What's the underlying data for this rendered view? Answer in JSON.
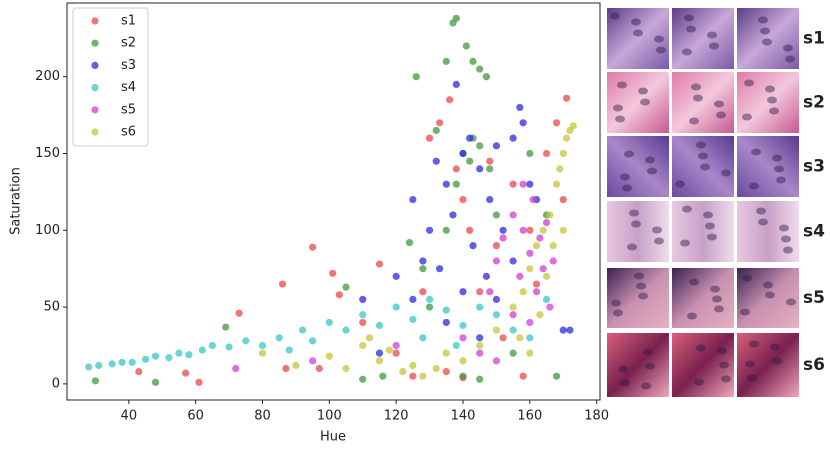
{
  "chart_data": {
    "type": "scatter",
    "xlabel": "Hue",
    "ylabel": "Saturation",
    "xlim": [
      21.5,
      181
    ],
    "ylim": [
      -10.5,
      248
    ],
    "xticks": [
      40,
      60,
      80,
      100,
      120,
      140,
      160,
      180
    ],
    "yticks": [
      0,
      50,
      100,
      150,
      200
    ],
    "legend": "upper left",
    "series": [
      {
        "name": "s1",
        "color": "#e8484a",
        "x": [
          43,
          57,
          61,
          73,
          86,
          87,
          95,
          97,
          101,
          103,
          110,
          115,
          120,
          125,
          130,
          133,
          136,
          138,
          140,
          142,
          145,
          148,
          150,
          152,
          155,
          158,
          160,
          165,
          168,
          171,
          135,
          140,
          128,
          162,
          170
        ],
        "y": [
          8,
          7,
          1,
          46,
          65,
          10,
          89,
          10,
          72,
          58,
          40,
          78,
          20,
          5,
          160,
          170,
          185,
          140,
          120,
          100,
          60,
          145,
          90,
          30,
          130,
          5,
          100,
          150,
          170,
          186,
          8,
          4,
          60,
          65,
          120
        ]
      },
      {
        "name": "s2",
        "color": "#3f993f",
        "x": [
          30,
          48,
          69,
          105,
          110,
          116,
          124,
          126,
          128,
          132,
          135,
          137,
          138,
          141,
          143,
          145,
          147,
          140,
          142,
          138,
          145,
          148,
          150,
          135,
          140,
          145,
          155,
          160,
          165,
          168,
          130,
          143
        ],
        "y": [
          2,
          1,
          37,
          63,
          3,
          5,
          92,
          200,
          75,
          165,
          210,
          235,
          238,
          220,
          210,
          205,
          200,
          150,
          145,
          130,
          155,
          140,
          110,
          100,
          5,
          3,
          20,
          150,
          110,
          5,
          50,
          160
        ]
      },
      {
        "name": "s3",
        "color": "#2a2ae0",
        "x": [
          110,
          115,
          120,
          125,
          128,
          130,
          132,
          135,
          137,
          138,
          140,
          142,
          143,
          145,
          147,
          148,
          150,
          152,
          155,
          157,
          158,
          160,
          162,
          140,
          135,
          145,
          150,
          170,
          172,
          155,
          125,
          133
        ],
        "y": [
          55,
          20,
          70,
          120,
          80,
          100,
          145,
          130,
          110,
          195,
          150,
          160,
          90,
          140,
          70,
          120,
          155,
          100,
          160,
          180,
          170,
          130,
          120,
          60,
          40,
          30,
          55,
          35,
          35,
          80,
          55,
          75
        ]
      },
      {
        "name": "s4",
        "color": "#3cc6c6",
        "x": [
          28,
          31,
          35,
          38,
          41,
          45,
          48,
          52,
          55,
          58,
          62,
          65,
          70,
          75,
          80,
          85,
          88,
          92,
          95,
          100,
          105,
          110,
          115,
          120,
          125,
          130,
          135,
          140,
          145,
          150,
          155,
          160,
          165,
          128,
          138
        ],
        "y": [
          11,
          12,
          13,
          14,
          14,
          16,
          18,
          17,
          20,
          19,
          22,
          25,
          24,
          28,
          25,
          30,
          22,
          35,
          28,
          40,
          35,
          45,
          38,
          50,
          42,
          55,
          48,
          38,
          50,
          45,
          35,
          30,
          55,
          30,
          25
        ]
      },
      {
        "name": "s5",
        "color": "#d23fd2",
        "x": [
          72,
          95,
          120,
          140,
          148,
          150,
          152,
          155,
          157,
          158,
          160,
          161,
          162,
          163,
          164,
          165,
          166,
          167,
          155,
          158,
          160,
          145,
          150
        ],
        "y": [
          10,
          15,
          25,
          30,
          60,
          80,
          95,
          110,
          70,
          100,
          85,
          120,
          60,
          95,
          75,
          105,
          50,
          80,
          45,
          130,
          40,
          20,
          15
        ]
      },
      {
        "name": "s6",
        "color": "#c6c63a",
        "x": [
          80,
          90,
          100,
          105,
          110,
          112,
          115,
          118,
          122,
          125,
          128,
          132,
          135,
          140,
          145,
          150,
          155,
          158,
          160,
          162,
          164,
          166,
          168,
          170,
          171,
          172,
          173,
          169,
          167,
          165,
          163,
          157,
          160,
          170
        ],
        "y": [
          20,
          12,
          18,
          10,
          25,
          30,
          15,
          22,
          8,
          12,
          5,
          10,
          20,
          15,
          25,
          35,
          50,
          60,
          75,
          90,
          100,
          110,
          130,
          150,
          160,
          165,
          168,
          140,
          90,
          70,
          45,
          30,
          20,
          100
        ]
      }
    ]
  }
}
